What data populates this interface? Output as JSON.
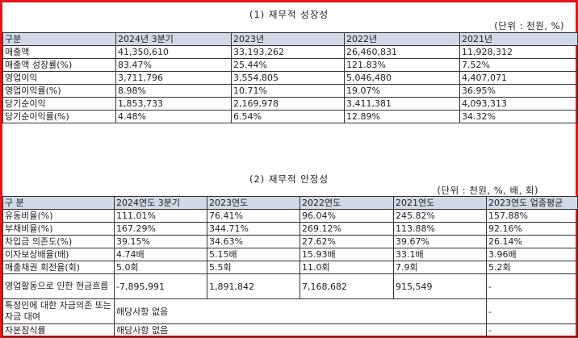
{
  "growth": {
    "title": "(1) 재무적 성장성",
    "unit": "(단위 : 천원, %)",
    "headers": [
      "구분",
      "2024년 3분기",
      "2023년",
      "2022년",
      "2021년"
    ],
    "rows": [
      [
        "매출액",
        "41,350,610",
        "33,193,262",
        "26,460,831",
        "11,928,312"
      ],
      [
        "매출액 성장률(%)",
        "83.47%",
        "25.44%",
        "121.83%",
        "7.52%"
      ],
      [
        "영업이익",
        "3,711,796",
        "3,554,805",
        "5,046,480",
        "4,407,071"
      ],
      [
        "영업이익률(%)",
        "8.98%",
        "10.71%",
        "19.07%",
        "36.95%"
      ],
      [
        "당기순이익",
        "1,853,733",
        "2,169,978",
        "3,411,381",
        "4,093,313"
      ],
      [
        "당기순이익률(%)",
        "4.48%",
        "6.54%",
        "12.89%",
        "34.32%"
      ]
    ]
  },
  "stability": {
    "title": "(2) 재무적 안정성",
    "unit": "(단위 : 천원, %, 배, 회)",
    "headers": [
      "구 분",
      "2024연도 3분기",
      "2023연도",
      "2022연도",
      "2021연도",
      "2023연도 업종평균"
    ],
    "rows": [
      [
        "유동비율(%)",
        "111.01%",
        "76.41%",
        "96.04%",
        "245.82%",
        "157.88%"
      ],
      [
        "부채비율(%)",
        "167.29%",
        "344.71%",
        "269.12%",
        "113.88%",
        "92.16%"
      ],
      [
        "차입금 의존도(%)",
        "39.15%",
        "34.63%",
        "27.62%",
        "39.67%",
        "26.14%"
      ],
      [
        "이자보상배율(배)",
        "4.74배",
        "5.15배",
        "15.93배",
        "33.1배",
        "3.96배"
      ],
      [
        "매출채권 회전율(회)",
        "5.0회",
        "5.5회",
        "11.0회",
        "7.9회",
        "5.2회"
      ],
      [
        "영업활동으로 인한 현금흐름",
        "-7,895,991",
        "1,891,842",
        "7,168,682",
        "915,549",
        "-"
      ]
    ],
    "merged_rows": [
      [
        "특정인에 대한 자금의존 또는 자금 대여",
        "해당사항 없음",
        "-"
      ],
      [
        "자본잠식률",
        "해당사항 없음",
        "-"
      ]
    ]
  }
}
